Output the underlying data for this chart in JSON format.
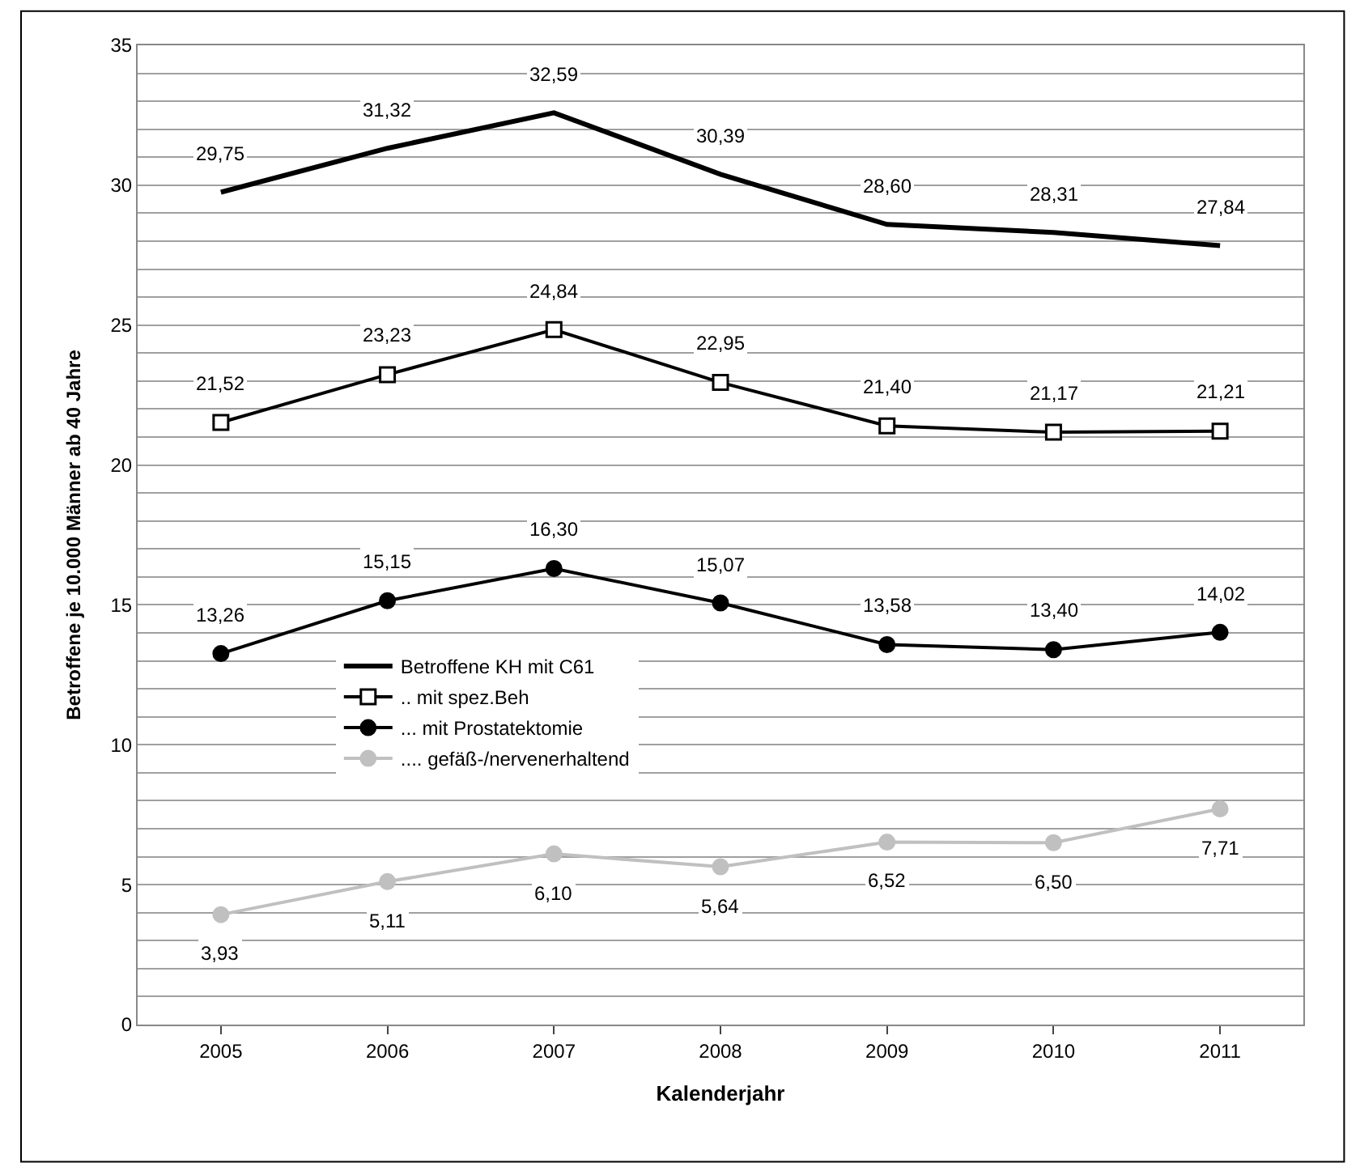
{
  "chart_data": {
    "type": "line",
    "xlabel": "Kalenderjahr",
    "ylabel": "Betroffene je 10.000 Männer ab 40 Jahre",
    "categories": [
      "2005",
      "2006",
      "2007",
      "2008",
      "2009",
      "2010",
      "2011"
    ],
    "series": [
      {
        "name": "Betroffene KH mit C61",
        "color": "#000000",
        "marker": "none",
        "values": [
          29.75,
          31.32,
          32.59,
          30.39,
          28.6,
          28.31,
          27.84
        ],
        "value_labels": [
          "29,75",
          "31,32",
          "32,59",
          "30,39",
          "28,60",
          "28,31",
          "27,84"
        ]
      },
      {
        "name": ".. mit spez.Beh",
        "color": "#000000",
        "marker": "square",
        "values": [
          21.52,
          23.23,
          24.84,
          22.95,
          21.4,
          21.17,
          21.21
        ],
        "value_labels": [
          "21,52",
          "23,23",
          "24,84",
          "22,95",
          "21,40",
          "21,17",
          "21,21"
        ]
      },
      {
        "name": "... mit Prostatektomie",
        "color": "#000000",
        "marker": "circle",
        "values": [
          13.26,
          15.15,
          16.3,
          15.07,
          13.58,
          13.4,
          14.02
        ],
        "value_labels": [
          "13,26",
          "15,15",
          "16,30",
          "15,07",
          "13,58",
          "13,40",
          "14,02"
        ]
      },
      {
        "name": ".... gefäß-/nervenerhaltend",
        "color": "#c0c0c0",
        "marker": "circle",
        "values": [
          3.93,
          5.11,
          6.1,
          5.64,
          6.52,
          6.5,
          7.71
        ],
        "value_labels": [
          "3,93",
          "5,11",
          "6,10",
          "5,64",
          "6,52",
          "6,50",
          "7,71"
        ]
      }
    ],
    "ylim": [
      0,
      35
    ],
    "yticks": [
      0,
      {
        "value": 1,
        "label": null
      },
      {
        "value": 2,
        "label": null
      },
      {
        "value": 3,
        "label": null
      },
      {
        "value": 4,
        "label": null
      },
      5,
      {
        "value": 6,
        "label": null
      },
      {
        "value": 7,
        "label": null
      },
      {
        "value": 8,
        "label": null
      },
      {
        "value": 9,
        "label": null
      },
      10,
      {
        "value": 11,
        "label": null
      },
      {
        "value": 12,
        "label": null
      },
      {
        "value": 13,
        "label": null
      },
      {
        "value": 14,
        "label": null
      },
      15,
      {
        "value": 16,
        "label": null
      },
      {
        "value": 17,
        "label": null
      },
      {
        "value": 18,
        "label": null
      },
      {
        "value": 19,
        "label": null
      },
      20,
      {
        "value": 21,
        "label": null
      },
      {
        "value": 22,
        "label": null
      },
      {
        "value": 23,
        "label": null
      },
      {
        "value": 24,
        "label": null
      },
      25,
      {
        "value": 26,
        "label": null
      },
      {
        "value": 27,
        "label": null
      },
      {
        "value": 28,
        "label": null
      },
      {
        "value": 29,
        "label": null
      },
      30,
      {
        "value": 31,
        "label": null
      },
      {
        "value": 32,
        "label": null
      },
      {
        "value": 33,
        "label": null
      },
      {
        "value": 34,
        "label": null
      },
      35
    ],
    "grid": "y",
    "legend": "left"
  }
}
